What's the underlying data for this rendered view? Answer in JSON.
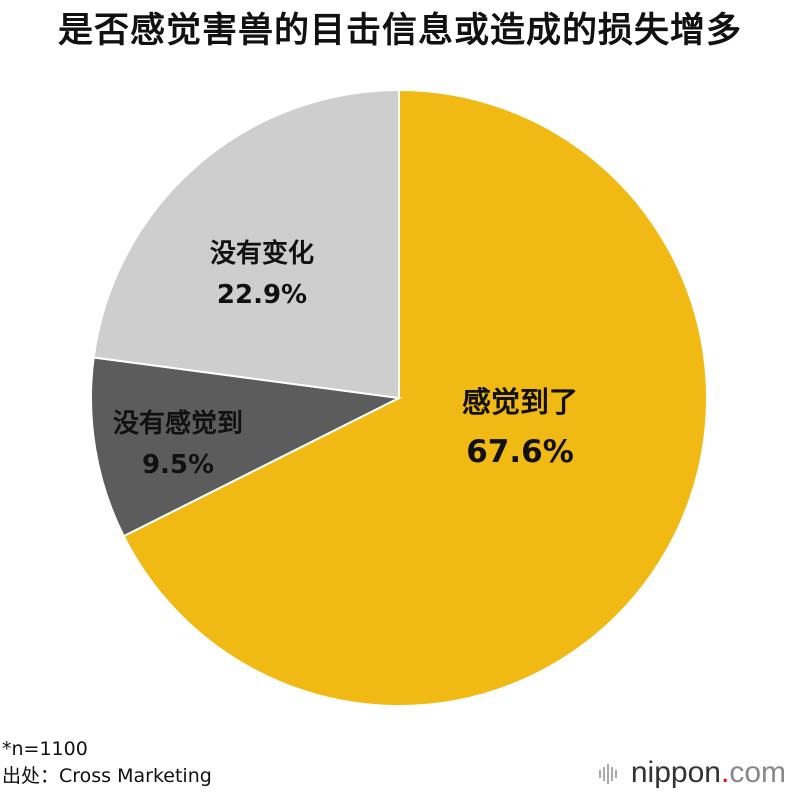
{
  "chart_data": {
    "type": "pie",
    "title": "是否感觉害兽的目击信息或造成的损失增多",
    "slices": [
      {
        "label": "感觉到了",
        "value": 67.6,
        "value_label": "67.6%",
        "color": "#f0b914"
      },
      {
        "label": "没有感觉到",
        "value": 9.5,
        "value_label": "9.5%",
        "color": "#5c5c5c"
      },
      {
        "label": "没有变化",
        "value": 22.9,
        "value_label": "22.9%",
        "color": "#cecece"
      }
    ],
    "start": "12 o'clock",
    "direction": "clockwise"
  },
  "notes": {
    "sample": "*n=1100",
    "source": "出处：Cross Marketing"
  },
  "logo": {
    "name": "nippon",
    "dot": ".",
    "tld": "com"
  }
}
